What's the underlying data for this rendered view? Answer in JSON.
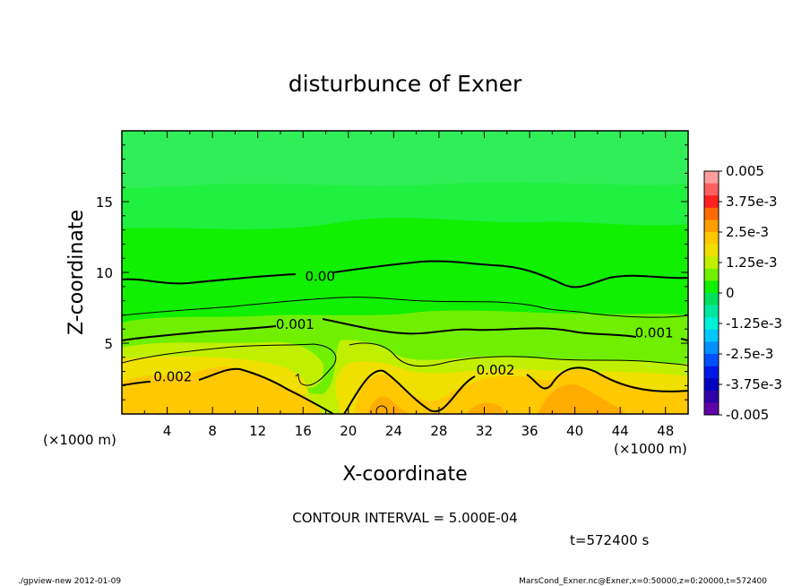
{
  "chart_data": {
    "type": "heatmap",
    "title": "disturbunce of Exner",
    "xlabel": "X-coordinate",
    "ylabel": "Z-coordinate",
    "x_unit": "(×1000 m)",
    "x_unit_right": "(×1000 m)",
    "xlim": [
      0,
      50
    ],
    "ylim": [
      0,
      20
    ],
    "xticks": [
      "4",
      "8",
      "12",
      "16",
      "20",
      "24",
      "28",
      "32",
      "36",
      "40",
      "44",
      "48"
    ],
    "yticks": [
      "5",
      "10",
      "15"
    ],
    "colorbar": {
      "labels": [
        "0.005",
        "3.75e-3",
        "2.5e-3",
        "1.25e-3",
        "0",
        "-1.25e-3",
        "-2.5e-3",
        "-3.75e-3",
        "-0.005"
      ],
      "colors": [
        "#ff9e9e",
        "#ff5f5f",
        "#ff2020",
        "#ff6a00",
        "#ff9c00",
        "#ffc800",
        "#f0e000",
        "#c0f000",
        "#70f000",
        "#10f000",
        "#00e060",
        "#00e8a0",
        "#00f0d8",
        "#00c8ff",
        "#0090ff",
        "#0050ff",
        "#0018e8",
        "#0000c0",
        "#3000a8",
        "#6000a8"
      ]
    },
    "contour_labels": [
      {
        "text": "0.00",
        "x": 17.5,
        "z": 9.4
      },
      {
        "text": "0.001",
        "x": 15.3,
        "z": 6.0
      },
      {
        "text": "0.001",
        "x": 47.0,
        "z": 5.4
      },
      {
        "text": "0.002",
        "x": 4.5,
        "z": 2.3
      },
      {
        "text": "0.002",
        "x": 33.0,
        "z": 2.8
      }
    ],
    "contour_interval_text": "CONTOUR INTERVAL = 5.000E-04",
    "time_text": "t=572400  s",
    "colors": {
      "background": "#10f000",
      "upper_band": "#20f040",
      "top_band": "#30ee58"
    }
  },
  "footer": {
    "left": "./gpview-new   2012-01-09",
    "right": "MarsCond_Exner.nc@Exner,x=0:50000,z=0:20000,t=572400"
  }
}
